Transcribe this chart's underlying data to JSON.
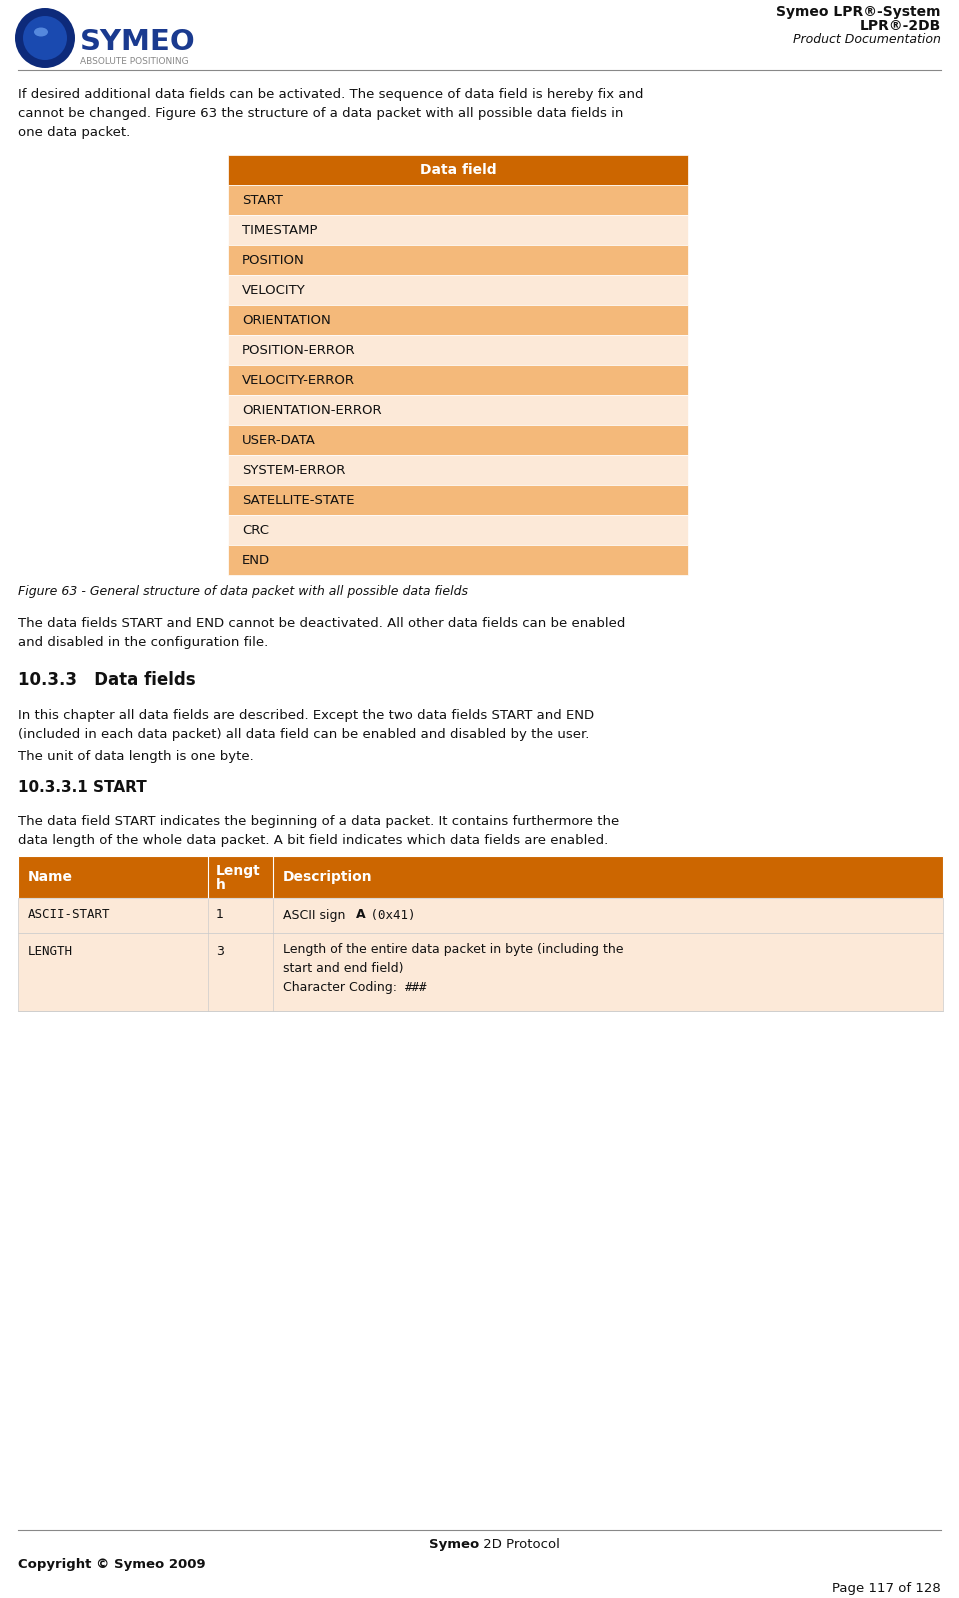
{
  "page_width": 9.59,
  "page_height": 15.98,
  "dpi": 100,
  "background_color": "#ffffff",
  "header_title1": "Symeo LPR®-System",
  "header_title2": "LPR®-2DB",
  "header_title3": "Product Documentation",
  "footer_center_bold": "Symeo",
  "footer_center_rest": " 2D Protocol",
  "footer_left": "Copyright © Symeo 2009",
  "footer_right": "Page 117 of 128",
  "intro_line1": "If desired additional data fields can be activated. The sequence of data field is hereby fix and",
  "intro_line2": "cannot be changed. Figure 63 the structure of a data packet with all possible data fields in",
  "intro_line3": "one data packet.",
  "table_header": "Data field",
  "table_header_bg": "#cc6600",
  "table_header_text_color": "#ffffff",
  "table_rows": [
    {
      "label": "START",
      "bg": "#f4b97a"
    },
    {
      "label": "TIMESTAMP",
      "bg": "#fce9d8"
    },
    {
      "label": "POSITION",
      "bg": "#f4b97a"
    },
    {
      "label": "VELOCITY",
      "bg": "#fce9d8"
    },
    {
      "label": "ORIENTATION",
      "bg": "#f4b97a"
    },
    {
      "label": "POSITION-ERROR",
      "bg": "#fce9d8"
    },
    {
      "label": "VELOCITY-ERROR",
      "bg": "#f4b97a"
    },
    {
      "label": "ORIENTATION-ERROR",
      "bg": "#fce9d8"
    },
    {
      "label": "USER-DATA",
      "bg": "#f4b97a"
    },
    {
      "label": "SYSTEM-ERROR",
      "bg": "#fce9d8"
    },
    {
      "label": "SATELLITE-STATE",
      "bg": "#f4b97a"
    },
    {
      "label": "CRC",
      "bg": "#fce9d8"
    },
    {
      "label": "END",
      "bg": "#f4b97a"
    }
  ],
  "figure_caption": "Figure 63 - General structure of data packet with all possible data fields",
  "para1_line1": "The data fields START and END cannot be deactivated. All other data fields can be enabled",
  "para1_line2": "and disabled in the configuration file.",
  "section_title": "10.3.3   Data fields",
  "para2_line1": "In this chapter all data fields are described. Except the two data fields START and END",
  "para2_line2": "(included in each data packet) all data field can be enabled and disabled by the user.",
  "para3": "The unit of data length is one byte.",
  "subsection_title": "10.3.3.1 START",
  "para4_line1": "The data field START indicates the beginning of a data packet. It contains furthermore the",
  "para4_line2": "data length of the whole data packet. A bit field indicates which data fields are enabled.",
  "btable_header_bg": "#cc6600",
  "btable_header_text": "#ffffff",
  "btable_cols": [
    "Name",
    "Length\nh",
    "Description"
  ],
  "text_color": "#111111",
  "divider_color": "#999999"
}
